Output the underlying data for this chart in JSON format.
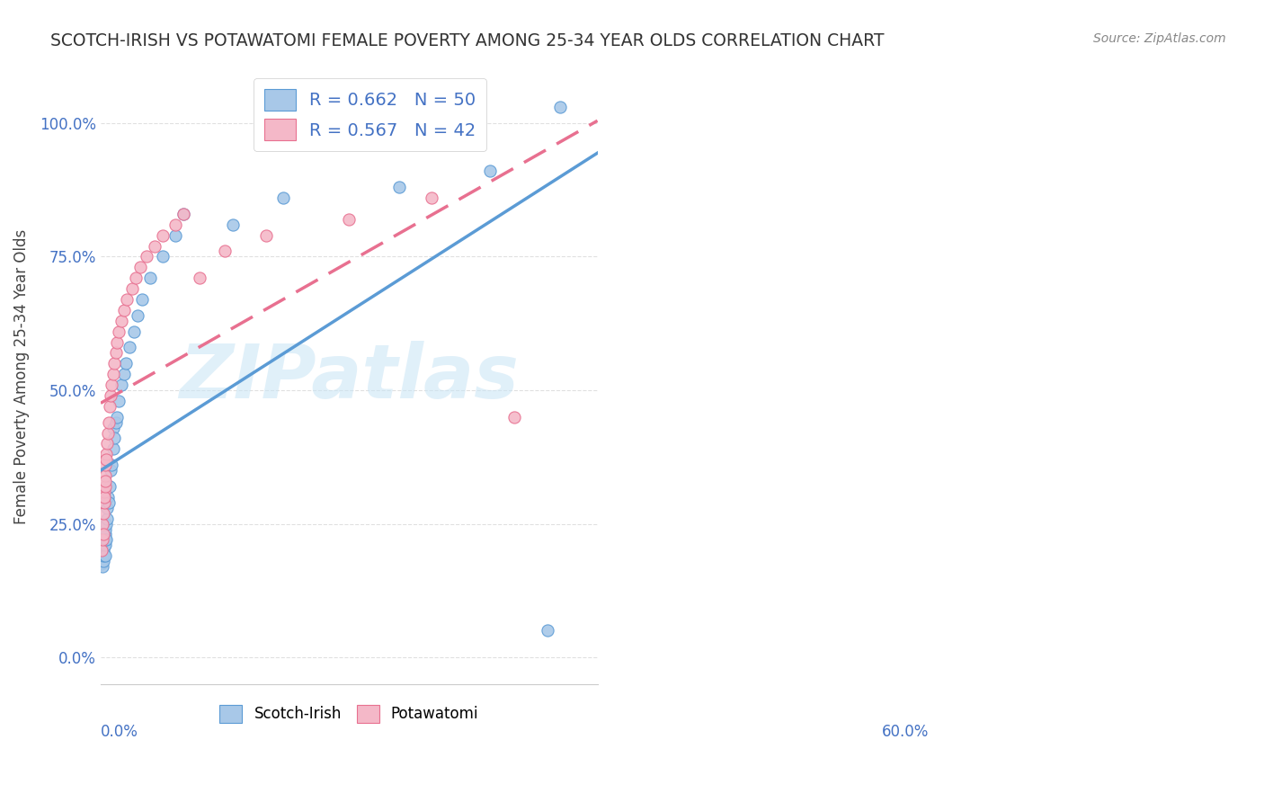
{
  "title": "SCOTCH-IRISH VS POTAWATOMI FEMALE POVERTY AMONG 25-34 YEAR OLDS CORRELATION CHART",
  "source": "Source: ZipAtlas.com",
  "ylabel": "Female Poverty Among 25-34 Year Olds",
  "xlim": [
    0.0,
    0.6
  ],
  "ylim": [
    -0.05,
    1.1
  ],
  "watermark": "ZIPatlas",
  "scotch_irish_color": "#a8c8e8",
  "scotch_irish_edge": "#5b9bd5",
  "scotch_irish_line": "#5b9bd5",
  "potawatomi_color": "#f4b8c8",
  "potawatomi_edge": "#e87090",
  "potawatomi_line": "#e87090",
  "legend_color": "#4472c4",
  "tick_color": "#4472c4",
  "title_color": "#333333",
  "background_color": "#ffffff",
  "grid_color": "#e0e0e0",
  "ytick_values": [
    0.0,
    0.25,
    0.5,
    0.75,
    1.0
  ],
  "ytick_labels": [
    "0.0%",
    "25.0%",
    "50.0%",
    "75.0%",
    "100.0%"
  ],
  "si_R": "0.662",
  "si_N": "50",
  "pt_R": "0.567",
  "pt_N": "42",
  "si_x": [
    0.001,
    0.001,
    0.002,
    0.002,
    0.002,
    0.002,
    0.003,
    0.003,
    0.003,
    0.003,
    0.004,
    0.004,
    0.004,
    0.005,
    0.005,
    0.005,
    0.006,
    0.006,
    0.007,
    0.007,
    0.008,
    0.008,
    0.009,
    0.01,
    0.011,
    0.012,
    0.013,
    0.015,
    0.015,
    0.016,
    0.018,
    0.02,
    0.022,
    0.025,
    0.028,
    0.03,
    0.035,
    0.04,
    0.045,
    0.05,
    0.06,
    0.075,
    0.09,
    0.1,
    0.16,
    0.22,
    0.36,
    0.47,
    0.54,
    0.555
  ],
  "si_y": [
    0.18,
    0.175,
    0.19,
    0.17,
    0.2,
    0.21,
    0.18,
    0.2,
    0.22,
    0.19,
    0.21,
    0.23,
    0.22,
    0.19,
    0.21,
    0.23,
    0.24,
    0.22,
    0.25,
    0.22,
    0.26,
    0.28,
    0.3,
    0.29,
    0.32,
    0.35,
    0.36,
    0.39,
    0.43,
    0.41,
    0.44,
    0.45,
    0.48,
    0.51,
    0.53,
    0.55,
    0.58,
    0.61,
    0.64,
    0.67,
    0.71,
    0.75,
    0.79,
    0.83,
    0.81,
    0.86,
    0.88,
    0.91,
    0.05,
    1.03
  ],
  "pt_x": [
    0.001,
    0.002,
    0.002,
    0.003,
    0.003,
    0.004,
    0.004,
    0.004,
    0.005,
    0.005,
    0.006,
    0.006,
    0.007,
    0.007,
    0.008,
    0.009,
    0.01,
    0.011,
    0.012,
    0.013,
    0.015,
    0.016,
    0.018,
    0.02,
    0.022,
    0.025,
    0.028,
    0.032,
    0.038,
    0.042,
    0.048,
    0.055,
    0.065,
    0.075,
    0.09,
    0.1,
    0.12,
    0.15,
    0.2,
    0.3,
    0.4,
    0.5
  ],
  "pt_y": [
    0.2,
    0.22,
    0.25,
    0.23,
    0.27,
    0.29,
    0.31,
    0.3,
    0.32,
    0.34,
    0.33,
    0.36,
    0.38,
    0.37,
    0.4,
    0.42,
    0.44,
    0.47,
    0.49,
    0.51,
    0.53,
    0.55,
    0.57,
    0.59,
    0.61,
    0.63,
    0.65,
    0.67,
    0.69,
    0.71,
    0.73,
    0.75,
    0.77,
    0.79,
    0.81,
    0.83,
    0.71,
    0.76,
    0.79,
    0.82,
    0.86,
    0.45
  ]
}
